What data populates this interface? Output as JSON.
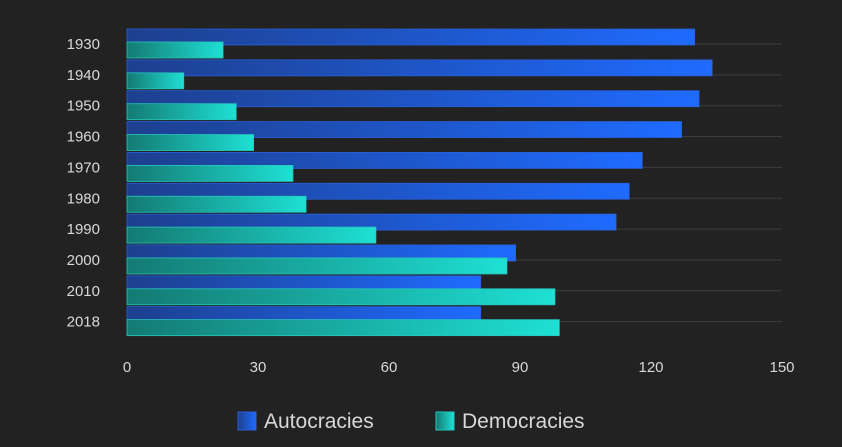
{
  "chart_data": {
    "type": "bar",
    "orientation": "horizontal",
    "categories": [
      "1930",
      "1940",
      "1950",
      "1960",
      "1970",
      "1980",
      "1990",
      "2000",
      "2010",
      "2018"
    ],
    "series": [
      {
        "name": "Autocracies",
        "color": "#1f6bff",
        "values": [
          130,
          134,
          131,
          127,
          118,
          115,
          112,
          89,
          81,
          81
        ]
      },
      {
        "name": "Democracies",
        "color": "#1ee0d4",
        "values": [
          22,
          13,
          25,
          29,
          38,
          41,
          57,
          87,
          98,
          99
        ]
      }
    ],
    "xlim": [
      0,
      150
    ],
    "xticks": [
      "0",
      "30",
      "60",
      "90",
      "120",
      "150"
    ],
    "grid": true,
    "legend_position": "bottom"
  }
}
